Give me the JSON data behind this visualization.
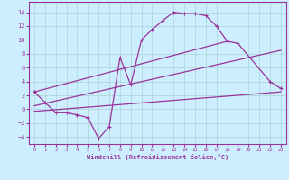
{
  "xlabel": "Windchill (Refroidissement éolien,°C)",
  "background_color": "#cceeff",
  "grid_color": "#aad4d4",
  "line_color": "#993399",
  "xlim": [
    -0.5,
    23.5
  ],
  "ylim": [
    -5,
    15.5
  ],
  "xticks": [
    0,
    1,
    2,
    3,
    4,
    5,
    6,
    7,
    8,
    9,
    10,
    11,
    12,
    13,
    14,
    15,
    16,
    17,
    18,
    19,
    20,
    21,
    22,
    23
  ],
  "yticks": [
    -4,
    -2,
    0,
    2,
    4,
    6,
    8,
    10,
    12,
    14
  ],
  "curve1_x": [
    0,
    1,
    2,
    3,
    4,
    5,
    6,
    7,
    8,
    9,
    10,
    11,
    12,
    13,
    14,
    15,
    16,
    17,
    18
  ],
  "curve1_y": [
    2.5,
    1.0,
    -0.5,
    -0.5,
    -0.8,
    -1.2,
    -4.2,
    -2.5,
    7.5,
    3.5,
    10.0,
    11.5,
    12.8,
    14.0,
    13.8,
    13.8,
    13.5,
    12.0,
    9.8
  ],
  "curve2_x": [
    0,
    18,
    19,
    22,
    23
  ],
  "curve2_y": [
    2.5,
    9.8,
    9.5,
    4.0,
    3.0
  ],
  "line3_x": [
    0,
    23
  ],
  "line3_y": [
    0.5,
    8.5
  ],
  "line4_x": [
    0,
    23
  ],
  "line4_y": [
    -0.3,
    2.5
  ]
}
